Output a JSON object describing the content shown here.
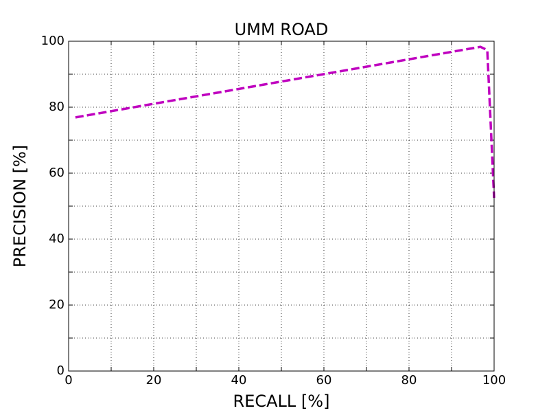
{
  "chart_data": {
    "type": "line",
    "title": "UMM ROAD",
    "x_label": "RECALL [%]",
    "y_label": "PRECISION [%]",
    "x": [
      1.6,
      96.8,
      98.4,
      100
    ],
    "series": [
      {
        "name": "UMM ROAD",
        "color": "#bf00bf",
        "values": [
          76.9,
          98.3,
          97.3,
          52.5
        ]
      }
    ],
    "xlim": [
      0,
      100
    ],
    "xticks": [
      0,
      20,
      40,
      60,
      80,
      100
    ],
    "xticks_minor": [
      10,
      30,
      50,
      70,
      90
    ],
    "ylim": [
      0,
      100
    ],
    "yticks": [
      0,
      20,
      40,
      60,
      80,
      100
    ],
    "yticks_minor": [
      10,
      30,
      50,
      70,
      90
    ],
    "grid": true
  }
}
